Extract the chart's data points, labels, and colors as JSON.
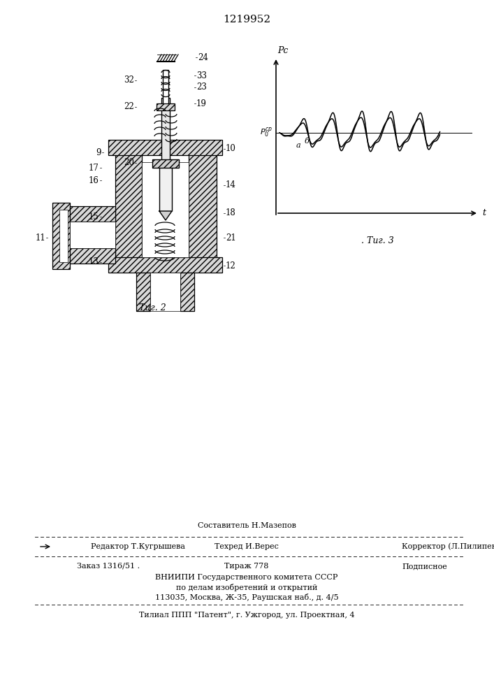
{
  "title": "1219952",
  "bg_color": "#ffffff",
  "fig2_caption": "Τиг. 2",
  "fig3_caption": "Τиг. 3",
  "graph_ylabel": "Pс",
  "graph_xlabel": "t",
  "label_a": "а",
  "label_b": "б",
  "footer_sestavitel_label": "Составитель Н.Мазепов",
  "footer_redaktor": "Редактор Т.Кугрышева",
  "footer_tehred": "Техред И.Верес",
  "footer_korrektor": "Корректор (Л.Пилипенко",
  "footer_zakaz": "Заказ 1316/51 .",
  "footer_tirazh": "Тираж 778",
  "footer_podpisnoe": "Подписное",
  "footer_vniipii": "ВНИИПИ Государственного комитета СССР",
  "footer_po_delam": "по делам изобретений и открытий",
  "footer_address": "113035, Москва, Ж-35, Раушская наб., д. 4/5",
  "footer_filial": "Τилиал ППП \"Патент\", г. Ужгород, ул. Проектная, 4"
}
